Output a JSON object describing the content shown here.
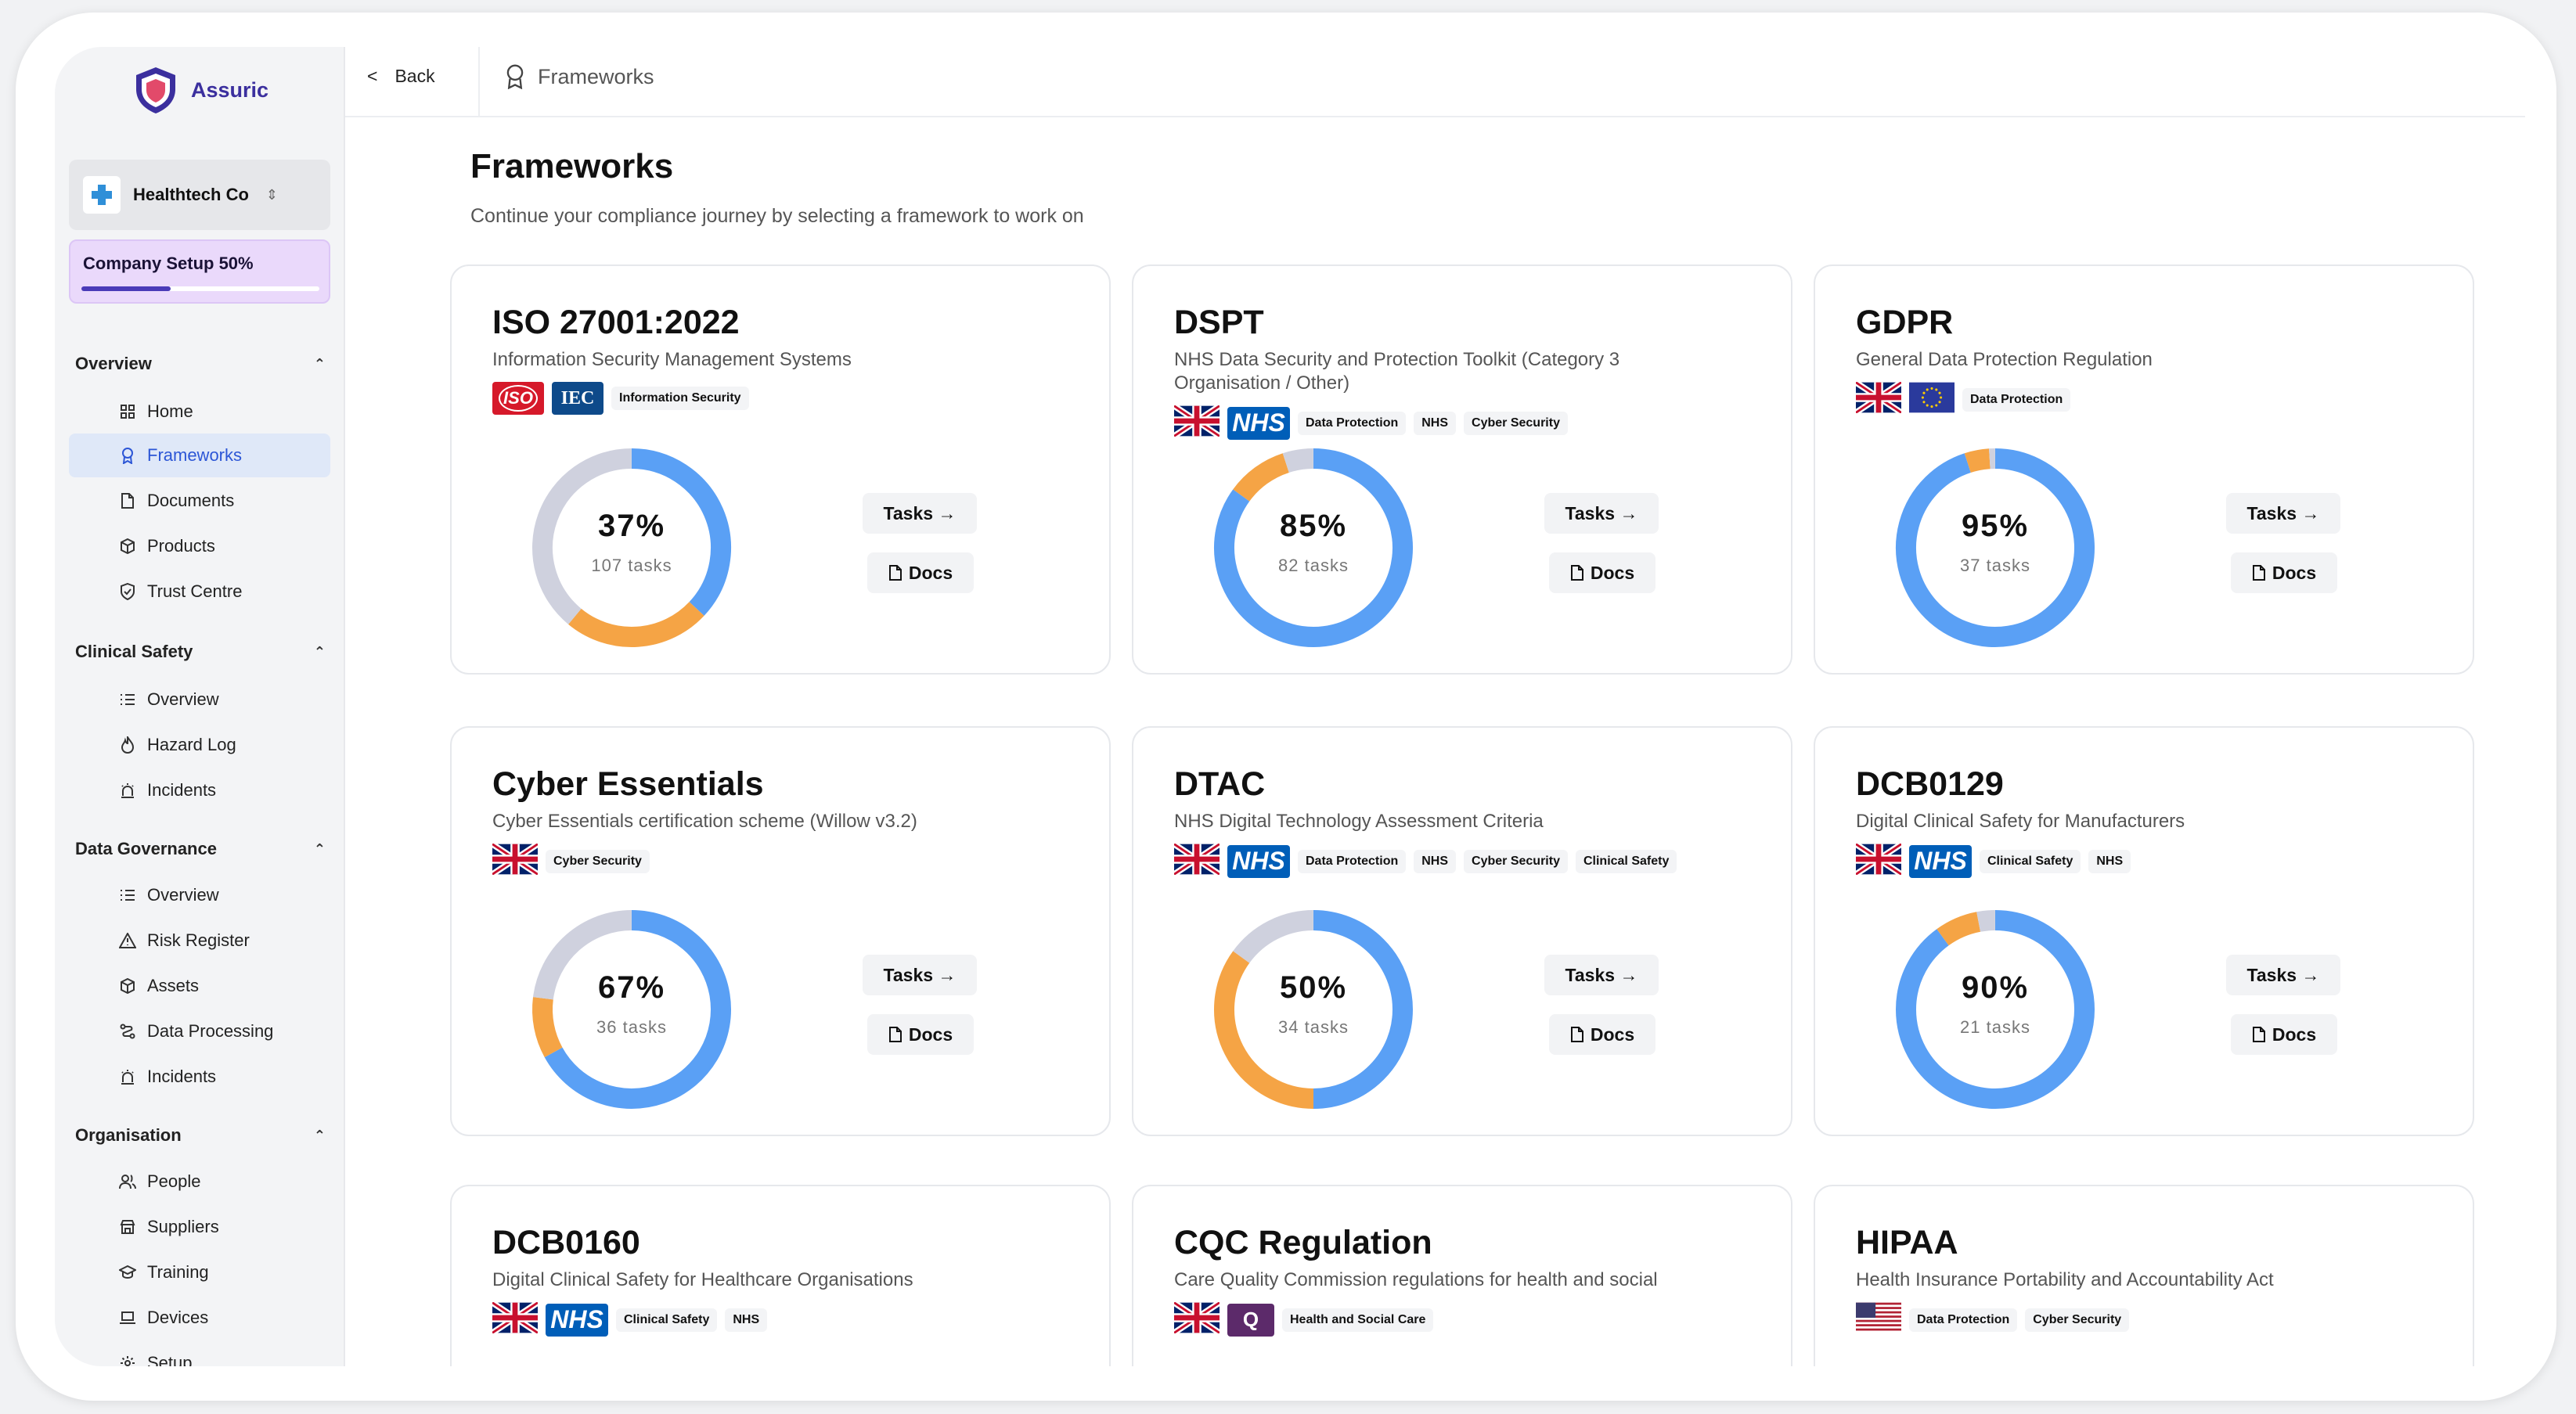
{
  "app": {
    "brand": "Assuric",
    "breadcrumb": "Frameworks",
    "back_label": "Back"
  },
  "org": {
    "name": "Healthtech Co"
  },
  "setup": {
    "label": "Company Setup 50%",
    "progress": 50
  },
  "sidebar": {
    "sections": [
      {
        "title": "Overview",
        "items": [
          "Home",
          "Frameworks",
          "Documents",
          "Products",
          "Trust Centre"
        ]
      },
      {
        "title": "Clinical Safety",
        "items": [
          "Overview",
          "Hazard Log",
          "Incidents"
        ]
      },
      {
        "title": "Data Governance",
        "items": [
          "Overview",
          "Risk Register",
          "Assets",
          "Data Processing",
          "Incidents"
        ]
      },
      {
        "title": "Organisation",
        "items": [
          "People",
          "Suppliers",
          "Training",
          "Devices",
          "Setup"
        ]
      }
    ]
  },
  "page": {
    "title": "Frameworks",
    "subtitle": "Continue your compliance journey by selecting a framework to work on"
  },
  "buttons": {
    "tasks": "Tasks →",
    "docs": "Docs"
  },
  "colors": {
    "complete": "#5aa0f5",
    "progress": "#f5a445",
    "remaining": "#cfd1de",
    "accent": "#2c56d6"
  },
  "frameworks": [
    {
      "title": "ISO 27001:2022",
      "desc": "Information Security Management Systems",
      "logos": [
        "ISO",
        "IEC"
      ],
      "tags": [
        "Information Security"
      ],
      "pct": "37%",
      "tasks": "107 tasks",
      "done": 37,
      "inprog": 24
    },
    {
      "title": "DSPT",
      "desc": "NHS Data Security and Protection Toolkit (Category 3 Organisation / Other)",
      "logos": [
        "UK",
        "NHS"
      ],
      "tags": [
        "Data Protection",
        "NHS",
        "Cyber Security"
      ],
      "pct": "85%",
      "tasks": "82 tasks",
      "done": 85,
      "inprog": 10
    },
    {
      "title": "GDPR",
      "desc": "General Data Protection Regulation",
      "logos": [
        "UK",
        "EU"
      ],
      "tags": [
        "Data Protection"
      ],
      "pct": "95%",
      "tasks": "37 tasks",
      "done": 95,
      "inprog": 4
    },
    {
      "title": "Cyber Essentials",
      "desc": "Cyber Essentials certification scheme (Willow v3.2)",
      "logos": [
        "UK"
      ],
      "tags": [
        "Cyber Security"
      ],
      "pct": "67%",
      "tasks": "36 tasks",
      "done": 67,
      "inprog": 10
    },
    {
      "title": "DTAC",
      "desc": "NHS Digital Technology Assessment Criteria",
      "logos": [
        "UK",
        "NHS"
      ],
      "tags": [
        "Data Protection",
        "NHS",
        "Cyber Security",
        "Clinical Safety"
      ],
      "pct": "50%",
      "tasks": "34 tasks",
      "done": 50,
      "inprog": 35
    },
    {
      "title": "DCB0129",
      "desc": "Digital Clinical Safety for Manufacturers",
      "logos": [
        "UK",
        "NHS"
      ],
      "tags": [
        "Clinical Safety",
        "NHS"
      ],
      "pct": "90%",
      "tasks": "21 tasks",
      "done": 90,
      "inprog": 7
    },
    {
      "title": "DCB0160",
      "desc": "Digital Clinical Safety for Healthcare Organisations",
      "logos": [
        "UK",
        "NHS"
      ],
      "tags": [
        "Clinical Safety",
        "NHS"
      ]
    },
    {
      "title": "CQC Regulation",
      "desc": "Care Quality Commission regulations for health and social",
      "logos": [
        "UK",
        "CQC"
      ],
      "tags": [
        "Health and Social Care"
      ]
    },
    {
      "title": "HIPAA",
      "desc": "Health Insurance Portability and Accountability Act",
      "logos": [
        "US"
      ],
      "tags": [
        "Data Protection",
        "Cyber Security"
      ]
    }
  ]
}
